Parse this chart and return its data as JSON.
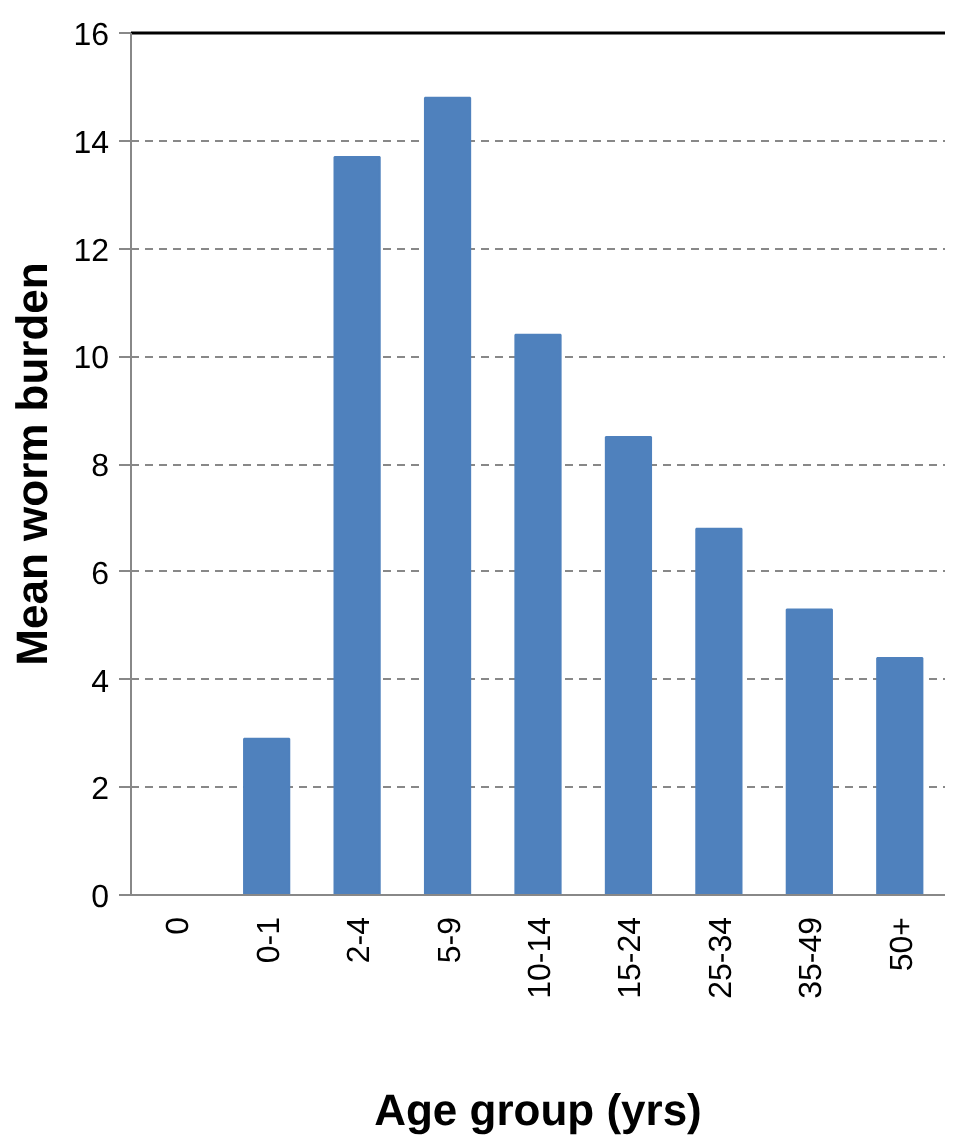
{
  "chart_data": {
    "type": "bar",
    "xlabel": "Age group (yrs)",
    "ylabel": "Mean worm burden",
    "categories": [
      "0",
      "0-1",
      "2-4",
      "5-9",
      "10-14",
      "15-24",
      "25-34",
      "35-49",
      "50+"
    ],
    "values": [
      0,
      2.9,
      13.7,
      14.8,
      10.4,
      8.5,
      6.8,
      5.3,
      4.4
    ],
    "color": "#4f81bd",
    "ylim": [
      0,
      16
    ],
    "yticks": [
      0,
      2,
      4,
      6,
      8,
      10,
      12,
      14,
      16
    ],
    "grid": "y"
  }
}
